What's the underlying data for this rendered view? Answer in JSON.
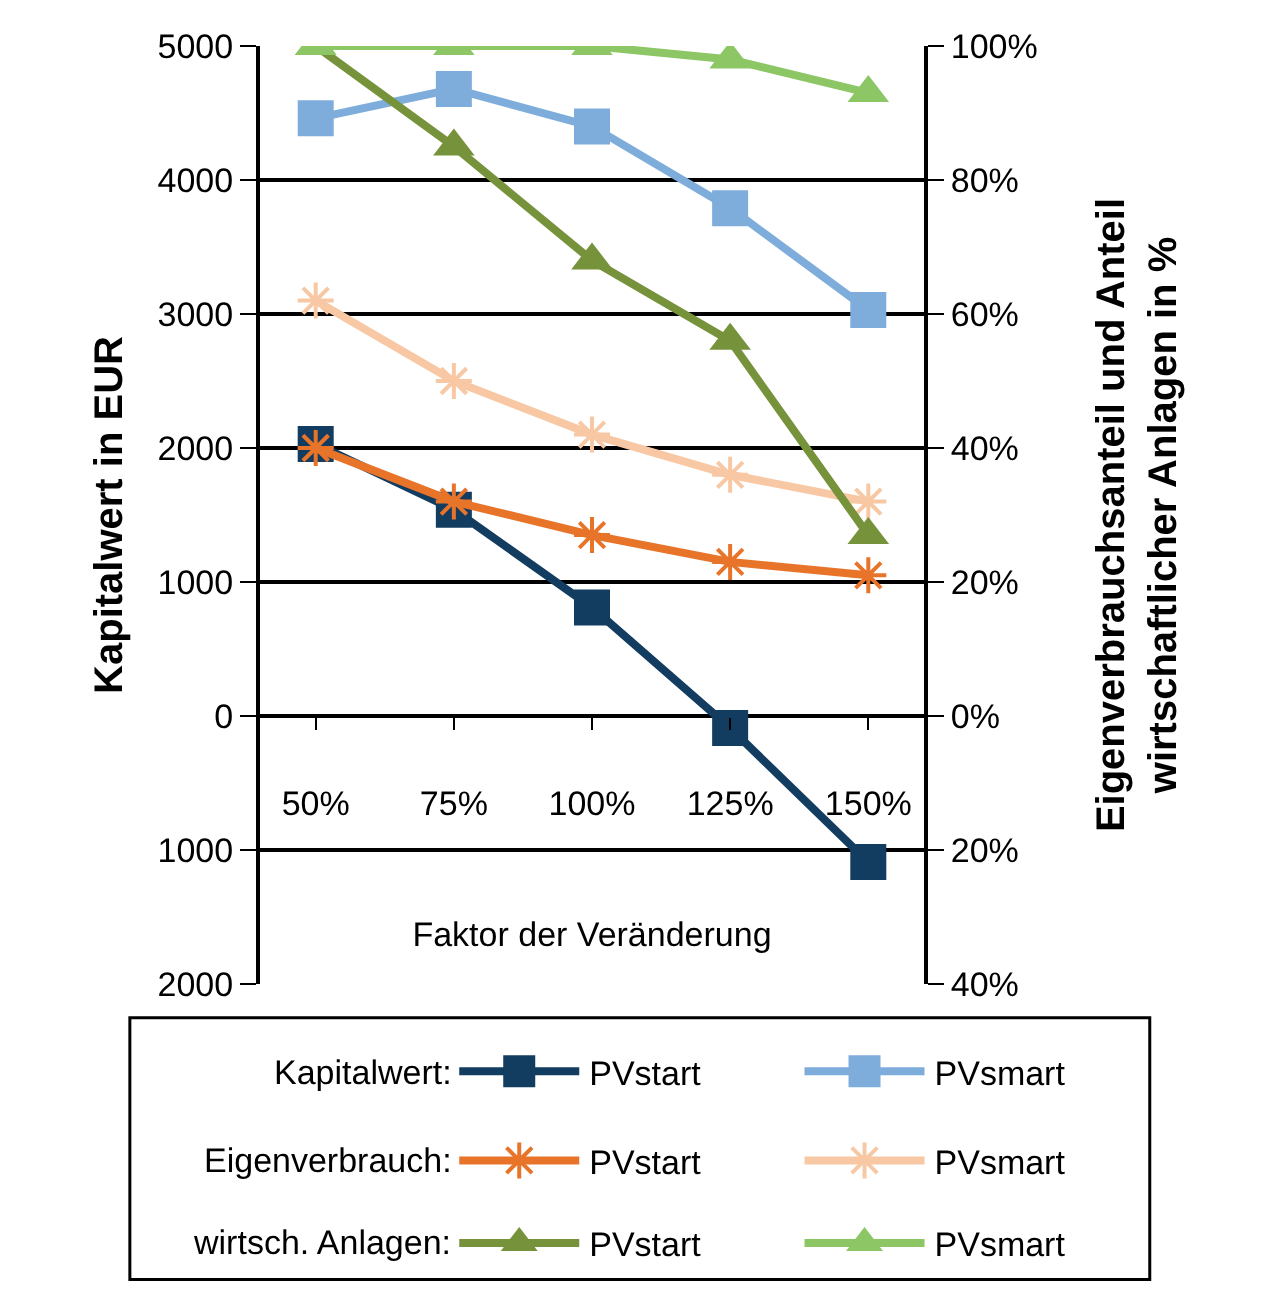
{
  "chart_data": {
    "type": "line",
    "categories": [
      "50%",
      "75%",
      "100%",
      "125%",
      "150%"
    ],
    "xlabel": "Faktor der Veränderung",
    "ylabel": "Kapitalwert in EUR",
    "y2label": "Eigenverbrauchsanteil und Anteil\nwirtschaftlicher Anlagen in %",
    "ylim": [
      -2000,
      5000
    ],
    "yticks": [
      {
        "value": -2000,
        "label": "2000"
      },
      {
        "value": -1000,
        "label": "1000"
      },
      0,
      1000,
      2000,
      3000,
      4000,
      5000
    ],
    "y2lim": [
      -40,
      100
    ],
    "y2ticks": [
      {
        "value": -40,
        "label": "40%"
      },
      {
        "value": -20,
        "label": "20%"
      },
      {
        "value": 0,
        "label": "0%"
      },
      {
        "value": 20,
        "label": "20%"
      },
      {
        "value": 40,
        "label": "40%"
      },
      {
        "value": 60,
        "label": "60%"
      },
      {
        "value": 80,
        "label": "80%"
      },
      {
        "value": 100,
        "label": "100%"
      }
    ],
    "grid": "y",
    "legend": "bottom",
    "line_style": "solid",
    "annotations": [
      "Kapitalwert:",
      "Eigenverbrauch:",
      "wirtsch. Anlagen:"
    ],
    "series": [
      {
        "name": "PVstart",
        "color": "#133c61",
        "marker": "square",
        "values": [
          2030,
          1540,
          810,
          -90,
          -1090
        ]
      },
      {
        "name": "PVsmart",
        "color": "#7eaddc",
        "marker": "square",
        "values": [
          4460,
          4680,
          4400,
          3790,
          3030
        ]
      },
      {
        "name": "PVstart",
        "color": "#e8742a",
        "marker": "cross",
        "axis": "y2",
        "values": [
          40,
          32,
          27,
          23,
          21
        ]
      },
      {
        "name": "PVsmart",
        "color": "#f8c8a4",
        "marker": "cross",
        "axis": "y2",
        "values": [
          62,
          50,
          42,
          36,
          32
        ]
      },
      {
        "name": "PVstart",
        "color": "#76933c",
        "marker": "triangle",
        "axis": "y2",
        "values": [
          100,
          85,
          68,
          56,
          27
        ]
      },
      {
        "name": "PVsmart",
        "color": "#8cc665",
        "marker": "triangle",
        "axis": "y2",
        "values": [
          100,
          100,
          100,
          98,
          93
        ]
      }
    ]
  }
}
